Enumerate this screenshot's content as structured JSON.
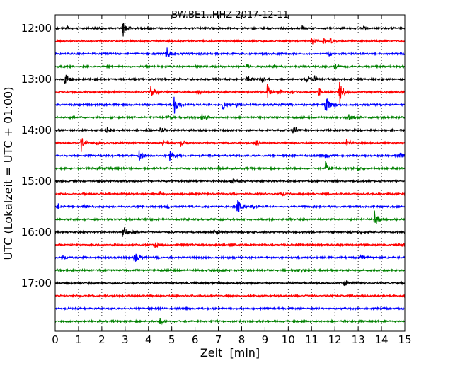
{
  "chart_data": {
    "type": "line",
    "title": "BW.BE1..HHZ 2017-12-11",
    "xlabel": "Zeit  [min]",
    "ylabel": "UTC (Lokalzeit = UTC + 01:00)",
    "xlim": [
      0,
      15
    ],
    "x_ticks": [
      "0",
      "1",
      "2",
      "3",
      "4",
      "5",
      "6",
      "7",
      "8",
      "9",
      "10",
      "11",
      "12",
      "13",
      "14",
      "15"
    ],
    "y_ticks": [
      "12:00",
      "13:00",
      "14:00",
      "15:00",
      "16:00",
      "17:00"
    ],
    "grid": "vertical dotted",
    "colors": [
      "#000000",
      "#ff0000",
      "#0000ff",
      "#008000"
    ],
    "traces": [
      {
        "start": "12:00",
        "events": [
          [
            2.9,
            0.9
          ],
          [
            0.5,
            0.2
          ],
          [
            10.6,
            0.25
          ],
          [
            13.2,
            0.25
          ]
        ]
      },
      {
        "start": "12:15",
        "events": [
          [
            11.0,
            0.45
          ],
          [
            11.5,
            0.4
          ],
          [
            11.8,
            0.3
          ]
        ]
      },
      {
        "start": "12:30",
        "events": [
          [
            4.8,
            0.35
          ],
          [
            4.75,
            0.3
          ],
          [
            11.7,
            0.45
          ]
        ]
      },
      {
        "start": "12:45",
        "events": [
          [
            8.2,
            0.25
          ],
          [
            9.2,
            0.2
          ],
          [
            12.0,
            0.3
          ]
        ]
      },
      {
        "start": "13:00",
        "events": [
          [
            0.4,
            0.9
          ],
          [
            8.2,
            0.5
          ],
          [
            8.8,
            0.5
          ],
          [
            10.8,
            0.55
          ],
          [
            11.1,
            0.45
          ]
        ]
      },
      {
        "start": "13:15",
        "events": [
          [
            4.1,
            0.9
          ],
          [
            6.1,
            0.3
          ],
          [
            9.1,
            0.8
          ],
          [
            9.6,
            0.35
          ],
          [
            10.1,
            0.3
          ],
          [
            11.3,
            0.45
          ],
          [
            12.2,
            1.5
          ]
        ]
      },
      {
        "start": "13:30",
        "events": [
          [
            5.1,
            1.0
          ],
          [
            7.2,
            0.65
          ],
          [
            7.8,
            0.3
          ],
          [
            11.6,
            1.0
          ]
        ]
      },
      {
        "start": "13:45",
        "events": [
          [
            4.8,
            0.25
          ],
          [
            6.3,
            0.4
          ],
          [
            12.6,
            0.3
          ]
        ]
      },
      {
        "start": "14:00",
        "events": [
          [
            2.2,
            0.3
          ],
          [
            4.5,
            0.3
          ],
          [
            10.2,
            0.65
          ]
        ]
      },
      {
        "start": "14:15",
        "events": [
          [
            1.1,
            1.0
          ],
          [
            1.8,
            0.3
          ],
          [
            4.6,
            0.3
          ],
          [
            5.4,
            0.6
          ],
          [
            8.6,
            0.35
          ],
          [
            12.5,
            0.35
          ]
        ]
      },
      {
        "start": "14:30",
        "events": [
          [
            3.6,
            0.7
          ],
          [
            4.9,
            1.0
          ],
          [
            11.6,
            0.3
          ],
          [
            14.8,
            0.4
          ]
        ]
      },
      {
        "start": "14:45",
        "events": [
          [
            1.8,
            0.3
          ],
          [
            7.0,
            0.3
          ],
          [
            11.6,
            0.9
          ],
          [
            13.0,
            0.35
          ]
        ]
      },
      {
        "start": "15:00",
        "events": [
          [
            7.5,
            0.35
          ]
        ]
      },
      {
        "start": "15:15",
        "events": [
          [
            4.5,
            0.3
          ],
          [
            9.7,
            0.25
          ]
        ]
      },
      {
        "start": "15:30",
        "events": [
          [
            0.1,
            0.35
          ],
          [
            1.2,
            0.3
          ],
          [
            4.8,
            0.25
          ],
          [
            7.8,
            1.0
          ],
          [
            8.4,
            0.3
          ]
        ]
      },
      {
        "start": "15:45",
        "events": [
          [
            13.7,
            1.0
          ]
        ]
      },
      {
        "start": "16:00",
        "events": [
          [
            2.9,
            1.0
          ],
          [
            3.3,
            0.35
          ],
          [
            6.8,
            0.25
          ],
          [
            13.0,
            0.25
          ]
        ]
      },
      {
        "start": "16:15",
        "events": [
          [
            4.3,
            0.35
          ],
          [
            14.9,
            0.35
          ]
        ]
      },
      {
        "start": "16:30",
        "events": [
          [
            0.3,
            0.35
          ],
          [
            3.4,
            0.6
          ],
          [
            13.1,
            0.3
          ]
        ]
      },
      {
        "start": "16:45",
        "events": [
          [
            10.4,
            0.3
          ]
        ]
      },
      {
        "start": "17:00",
        "events": [
          [
            12.4,
            0.45
          ]
        ]
      },
      {
        "start": "17:15",
        "events": []
      },
      {
        "start": "17:30",
        "events": []
      },
      {
        "start": "17:45",
        "events": [
          [
            4.5,
            0.35
          ]
        ]
      }
    ]
  }
}
